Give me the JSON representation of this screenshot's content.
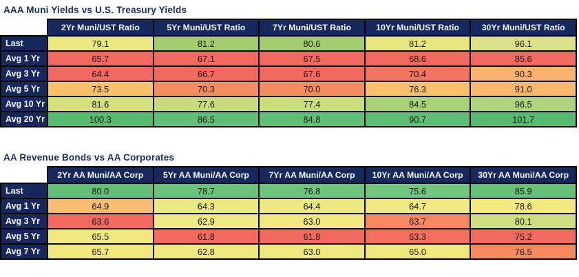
{
  "colors": {
    "navy_header": "#17285c",
    "title_text": "#1a2b5c",
    "grid_border": "#000000",
    "scale_red": "#f4695f",
    "scale_yellow": "#f2e87e",
    "scale_green": "#5fbd74"
  },
  "chart_data": [
    {
      "type": "table",
      "title": "AAA Muni Yields vs U.S. Treasury Yields",
      "columns": [
        "2Yr Muni/UST Ratio",
        "5Yr Muni/UST Ratio",
        "7Yr Muni/UST Ratio",
        "10Yr Muni/UST Ratio",
        "30Yr Muni/UST Ratio"
      ],
      "rows": [
        {
          "label": "Last",
          "cells": [
            {
              "value": "79.1",
              "color": "#ece87f"
            },
            {
              "value": "81.2",
              "color": "#a3cd6e"
            },
            {
              "value": "80.6",
              "color": "#a3cd6e"
            },
            {
              "value": "81.2",
              "color": "#e9e67e"
            },
            {
              "value": "96.1",
              "color": "#dae287"
            }
          ]
        },
        {
          "label": "Avg 1 Yr",
          "cells": [
            {
              "value": "65.7",
              "color": "#f4695f"
            },
            {
              "value": "67.1",
              "color": "#f4695f"
            },
            {
              "value": "67.5",
              "color": "#f4695f"
            },
            {
              "value": "68.6",
              "color": "#f4695f"
            },
            {
              "value": "85.6",
              "color": "#f4695f"
            }
          ]
        },
        {
          "label": "Avg 3 Yr",
          "cells": [
            {
              "value": "64.4",
              "color": "#f4695f"
            },
            {
              "value": "66.7",
              "color": "#f4695f"
            },
            {
              "value": "67.6",
              "color": "#f4695f"
            },
            {
              "value": "70.4",
              "color": "#f5745f"
            },
            {
              "value": "90.3",
              "color": "#f9b36e"
            }
          ]
        },
        {
          "label": "Avg 5 Yr",
          "cells": [
            {
              "value": "73.5",
              "color": "#f9c16a"
            },
            {
              "value": "70.3",
              "color": "#f68d60"
            },
            {
              "value": "70.0",
              "color": "#f68c60"
            },
            {
              "value": "76.3",
              "color": "#f9c06c"
            },
            {
              "value": "91.0",
              "color": "#f9b76c"
            }
          ]
        },
        {
          "label": "Avg 10 Yr",
          "cells": [
            {
              "value": "81.6",
              "color": "#d6e07f"
            },
            {
              "value": "77.6",
              "color": "#c9dc7e"
            },
            {
              "value": "77.4",
              "color": "#ccdd7e"
            },
            {
              "value": "84.5",
              "color": "#a9d176"
            },
            {
              "value": "96.5",
              "color": "#afd47b"
            }
          ]
        },
        {
          "label": "Avg 20 Yr",
          "cells": [
            {
              "value": "100.3",
              "color": "#57bb6f"
            },
            {
              "value": "86.5",
              "color": "#62bf77"
            },
            {
              "value": "84.8",
              "color": "#62bf77"
            },
            {
              "value": "90.7",
              "color": "#5fbe75"
            },
            {
              "value": "101.7",
              "color": "#57bb6f"
            }
          ]
        }
      ]
    },
    {
      "type": "table",
      "title": "AA Revenue Bonds vs AA Corporates",
      "columns": [
        "2Yr AA Muni/AA Corp",
        "5Yr AA Muni/AA Corp",
        "7Yr AA Muni/AA Corp",
        "10Yr AA Muni/AA Corp",
        "30Yr AA Muni/AA Corp"
      ],
      "rows": [
        {
          "label": "Last",
          "cells": [
            {
              "value": "80.0",
              "color": "#63bf77"
            },
            {
              "value": "78.7",
              "color": "#6ac17a"
            },
            {
              "value": "76.8",
              "color": "#70c37d"
            },
            {
              "value": "75.6",
              "color": "#73c47e"
            },
            {
              "value": "85.9",
              "color": "#67c078"
            }
          ]
        },
        {
          "label": "Avg 1 Yr",
          "cells": [
            {
              "value": "64.9",
              "color": "#f9bd74"
            },
            {
              "value": "64.3",
              "color": "#ece985"
            },
            {
              "value": "64.4",
              "color": "#eee884"
            },
            {
              "value": "64.7",
              "color": "#f2e982"
            },
            {
              "value": "78.6",
              "color": "#f4e97e"
            }
          ]
        },
        {
          "label": "Avg 3 Yr",
          "cells": [
            {
              "value": "63.6",
              "color": "#f4695f"
            },
            {
              "value": "62.9",
              "color": "#f0e881"
            },
            {
              "value": "63.0",
              "color": "#f1e880"
            },
            {
              "value": "63.7",
              "color": "#f6875f"
            },
            {
              "value": "80.1",
              "color": "#cfdf80"
            }
          ]
        },
        {
          "label": "Avg 5 Yr",
          "cells": [
            {
              "value": "65.5",
              "color": "#f2e87e"
            },
            {
              "value": "61.8",
              "color": "#f4695f"
            },
            {
              "value": "61.8",
              "color": "#f4695f"
            },
            {
              "value": "63.3",
              "color": "#f56e5f"
            },
            {
              "value": "75.2",
              "color": "#f4695f"
            }
          ]
        },
        {
          "label": "Avg 7 Yr",
          "cells": [
            {
              "value": "65.7",
              "color": "#f3e87e"
            },
            {
              "value": "62.8",
              "color": "#f1e880"
            },
            {
              "value": "63.0",
              "color": "#f1e880"
            },
            {
              "value": "65.0",
              "color": "#f3e87e"
            },
            {
              "value": "76.5",
              "color": "#f68b60"
            }
          ]
        }
      ]
    }
  ]
}
